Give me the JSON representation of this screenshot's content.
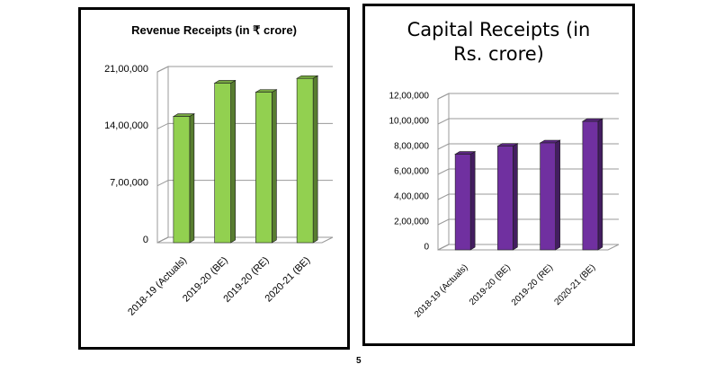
{
  "chart_data": [
    {
      "type": "bar",
      "title": "Revenue Receipts (in ₹ crore)",
      "categories": [
        "2018-19 (Actuals)",
        "2019-20 (BE)",
        "2019-20 (RE)",
        "2020-21 (BE)"
      ],
      "values": [
        1552000,
        1962000,
        1850000,
        2020000
      ],
      "color": "#92d050",
      "ylim": [
        0,
        2100000
      ],
      "yticks": [
        0,
        {
          "value": 700000,
          "label": "7,00,000"
        },
        {
          "value": 1400000,
          "label": "14,00,000"
        },
        {
          "value": 2100000,
          "label": "21,00,000"
        }
      ],
      "grid": true
    },
    {
      "type": "bar",
      "title": "Capital Receipts (in Rs. crore)",
      "categories": [
        "2018-19 (Actuals)",
        "2019-20 (BE)",
        "2019-20 (RE)",
        "2020-21 (BE)"
      ],
      "values": [
        760000,
        824000,
        850000,
        1021000
      ],
      "color": "#7030a0",
      "ylim": [
        0,
        1200000
      ],
      "yticks": [
        0,
        {
          "value": 200000,
          "label": "2,00,000"
        },
        {
          "value": 400000,
          "label": "4,00,000"
        },
        {
          "value": 600000,
          "label": "6,00,000"
        },
        {
          "value": 800000,
          "label": "8,00,000"
        },
        {
          "value": 1000000,
          "label": "10,00,000"
        },
        {
          "value": 1200000,
          "label": "12,00,000"
        }
      ],
      "grid": true
    }
  ],
  "page_number": "5"
}
